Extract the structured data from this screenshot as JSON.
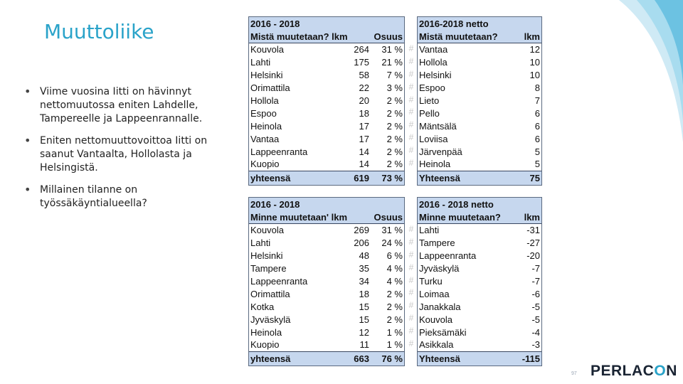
{
  "title": "Muuttoliike",
  "bullets": [
    "Viime vuosina Iitti on hävinnyt nettomuutossa eniten Lahdelle, Tampereelle ja Lappeenrannalle.",
    "Eniten nettomuuttovoittoa Iitti on saanut Vantaalta, Hollolasta ja Helsingistä.",
    "Millainen tilanne on työssäkäyntialueella?"
  ],
  "tables": {
    "from_gross": {
      "header1": "2016 - 2018",
      "header2_name": "Mistä muutetaan? lkm",
      "header2_pct": "Osuus",
      "rows": [
        {
          "name": "Kouvola",
          "value": "264",
          "pct": "31 %"
        },
        {
          "name": "Lahti",
          "value": "175",
          "pct": "21 %"
        },
        {
          "name": "Helsinki",
          "value": "58",
          "pct": "7 %"
        },
        {
          "name": "Orimattila",
          "value": "22",
          "pct": "3 %"
        },
        {
          "name": "Hollola",
          "value": "20",
          "pct": "2 %"
        },
        {
          "name": "Espoo",
          "value": "18",
          "pct": "2 %"
        },
        {
          "name": "Heinola",
          "value": "17",
          "pct": "2 %"
        },
        {
          "name": "Vantaa",
          "value": "17",
          "pct": "2 %"
        },
        {
          "name": "Lappeenranta",
          "value": "14",
          "pct": "2 %"
        },
        {
          "name": "Kuopio",
          "value": "14",
          "pct": "2 %"
        }
      ],
      "total": {
        "name": "yhteensä",
        "value": "619",
        "pct": "73 %"
      }
    },
    "from_net": {
      "header1": "2016-2018 netto",
      "header2_name": "Mistä muutetaan?",
      "header2_val": "lkm",
      "rows": [
        {
          "name": "Vantaa",
          "value": "12"
        },
        {
          "name": "Hollola",
          "value": "10"
        },
        {
          "name": "Helsinki",
          "value": "10"
        },
        {
          "name": "Espoo",
          "value": "8"
        },
        {
          "name": "Lieto",
          "value": "7"
        },
        {
          "name": "Pello",
          "value": "6"
        },
        {
          "name": "Mäntsälä",
          "value": "6"
        },
        {
          "name": "Loviisa",
          "value": "6"
        },
        {
          "name": "Järvenpää",
          "value": "5"
        },
        {
          "name": "Heinola",
          "value": "5"
        }
      ],
      "total": {
        "name": "Yhteensä",
        "value": "75"
      }
    },
    "to_gross": {
      "header1": "2016 - 2018",
      "header2_name": "Minne muutetaan' lkm",
      "header2_pct": "Osuus",
      "rows": [
        {
          "name": "Kouvola",
          "value": "269",
          "pct": "31 %"
        },
        {
          "name": "Lahti",
          "value": "206",
          "pct": "24 %"
        },
        {
          "name": "Helsinki",
          "value": "48",
          "pct": "6 %"
        },
        {
          "name": "Tampere",
          "value": "35",
          "pct": "4 %"
        },
        {
          "name": "Lappeenranta",
          "value": "34",
          "pct": "4 %"
        },
        {
          "name": "Orimattila",
          "value": "18",
          "pct": "2 %"
        },
        {
          "name": "Kotka",
          "value": "15",
          "pct": "2 %"
        },
        {
          "name": "Jyväskylä",
          "value": "15",
          "pct": "2 %"
        },
        {
          "name": "Heinola",
          "value": "12",
          "pct": "1 %"
        },
        {
          "name": "Kuopio",
          "value": "11",
          "pct": "1 %"
        }
      ],
      "total": {
        "name": "yhteensä",
        "value": "663",
        "pct": "76 %"
      }
    },
    "to_net": {
      "header1": "2016 - 2018 netto",
      "header2_name": "Minne muutetaan?",
      "header2_val": "lkm",
      "rows": [
        {
          "name": "Lahti",
          "value": "-31"
        },
        {
          "name": "Tampere",
          "value": "-27"
        },
        {
          "name": "Lappeenranta",
          "value": "-20"
        },
        {
          "name": "Jyväskylä",
          "value": "-7"
        },
        {
          "name": "Turku",
          "value": "-7"
        },
        {
          "name": "Loimaa",
          "value": "-6"
        },
        {
          "name": "Janakkala",
          "value": "-5"
        },
        {
          "name": "Kouvola",
          "value": "-5"
        },
        {
          "name": "Pieksämäki",
          "value": "-4"
        },
        {
          "name": "Asikkala",
          "value": "-3"
        }
      ],
      "total": {
        "name": "Yhteensä",
        "value": "-115"
      }
    }
  },
  "separator_glyph": "#",
  "page_number": "97",
  "logo": {
    "part1": "PERLAC",
    "o": "O",
    "part2": "N"
  },
  "colors": {
    "title": "#2aa3c9",
    "table_header": "#c6d7ee",
    "accent": "#2aa3c9"
  }
}
